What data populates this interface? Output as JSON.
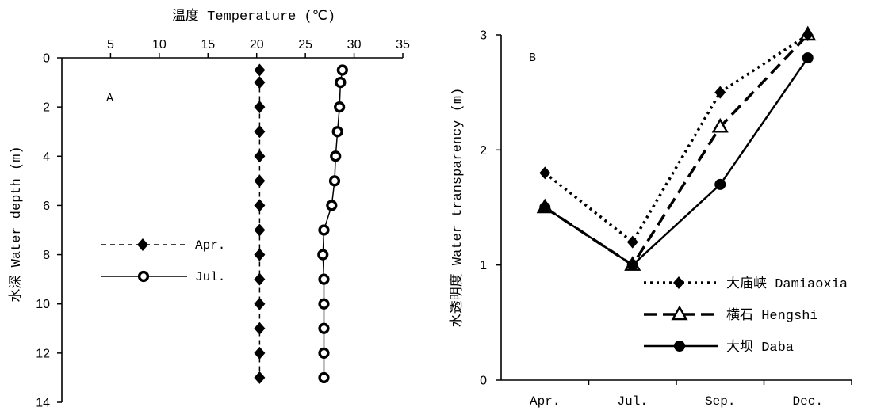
{
  "style": {
    "ink": "#000000",
    "background": "#ffffff"
  },
  "chart_data": [
    {
      "type": "line",
      "panel_label": "A",
      "xlabel": "温度 Temperature (℃)",
      "ylabel": "水深 Water depth (m)",
      "x_axis_position": "top",
      "y_inverted": true,
      "xlim": [
        0,
        35
      ],
      "ylim": [
        0,
        14
      ],
      "xticks": [
        5,
        10,
        15,
        20,
        25,
        30,
        35
      ],
      "yticks": [
        0,
        2,
        4,
        6,
        8,
        10,
        12,
        14
      ],
      "grid": false,
      "legend_placement": "center-left",
      "series": [
        {
          "name": "Apr.",
          "marker": "diamond-filled",
          "line_style": "dashed",
          "x": [
            20.3,
            20.3,
            20.3,
            20.3,
            20.3,
            20.3,
            20.3,
            20.3,
            20.3,
            20.3,
            20.3,
            20.3,
            20.3,
            20.3
          ],
          "y": [
            0.5,
            1,
            2,
            3,
            4,
            5,
            6,
            7,
            8,
            9,
            10,
            11,
            12,
            13
          ]
        },
        {
          "name": "Jul.",
          "marker": "circle-open",
          "line_style": "solid",
          "x": [
            28.8,
            28.6,
            28.5,
            28.3,
            28.1,
            28.0,
            27.7,
            26.9,
            26.8,
            26.9,
            26.9,
            26.9,
            26.9,
            26.9
          ],
          "y": [
            0.5,
            1,
            2,
            3,
            4,
            5,
            6,
            7,
            8,
            9,
            10,
            11,
            12,
            13
          ]
        }
      ]
    },
    {
      "type": "line",
      "panel_label": "B",
      "ylabel": "水透明度 Water transparency (m)",
      "categories": [
        "Apr.",
        "Jul.",
        "Sep.",
        "Dec."
      ],
      "ylim": [
        0,
        3
      ],
      "yticks": [
        0,
        1,
        2,
        3
      ],
      "grid": false,
      "legend_placement": "bottom-right",
      "series": [
        {
          "name": "大庙峡 Damiaoxia",
          "marker": "diamond-filled",
          "line_style": "dotted",
          "values": [
            1.8,
            1.2,
            2.5,
            3.0
          ]
        },
        {
          "name": "横石 Hengshi",
          "marker": "triangle-open",
          "line_style": "dashed",
          "values": [
            1.5,
            1.0,
            2.2,
            3.0
          ]
        },
        {
          "name": "大坝 Daba",
          "marker": "circle-filled",
          "line_style": "solid",
          "values": [
            1.5,
            1.0,
            1.7,
            2.8
          ]
        }
      ]
    }
  ]
}
